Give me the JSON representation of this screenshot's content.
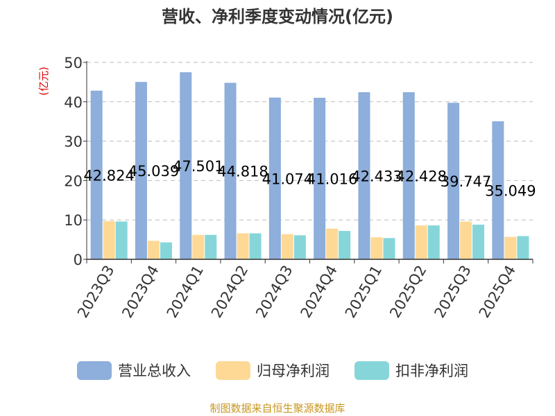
{
  "chart_data": {
    "type": "bar",
    "title": "营收、净利季度变动情况(亿元)",
    "ylabel": "(亿元)",
    "ylim": [
      0,
      50
    ],
    "yticks": [
      0,
      10,
      20,
      30,
      40,
      50
    ],
    "grid": true,
    "legend_position": "bottom",
    "categories": [
      "2023Q3",
      "2023Q4",
      "2024Q1",
      "2024Q2",
      "2024Q3",
      "2024Q4",
      "2025Q1",
      "2025Q2",
      "2025Q3",
      "2025Q4"
    ],
    "series": [
      {
        "name": "营业总收入",
        "color": "#8eaedb",
        "values": [
          42.824,
          45.039,
          47.501,
          44.818,
          41.074,
          41.016,
          42.433,
          42.428,
          39.747,
          35.049
        ]
      },
      {
        "name": "归母净利润",
        "color": "#fed996",
        "values": [
          9.7,
          4.7,
          6.2,
          6.6,
          6.4,
          7.8,
          5.6,
          8.6,
          9.6,
          5.7
        ]
      },
      {
        "name": "扣非净利润",
        "color": "#86d6d9",
        "values": [
          9.6,
          4.3,
          6.2,
          6.6,
          6.1,
          7.2,
          5.4,
          8.6,
          8.8,
          5.9
        ]
      }
    ],
    "data_labels": [
      "42.824",
      "45.039",
      "47.501",
      "44.818",
      "41.074",
      "41.016",
      "42.433",
      "42.428",
      "39.747",
      "35.049"
    ]
  },
  "footer": {
    "source": "制图数据来自恒生聚源数据库"
  }
}
